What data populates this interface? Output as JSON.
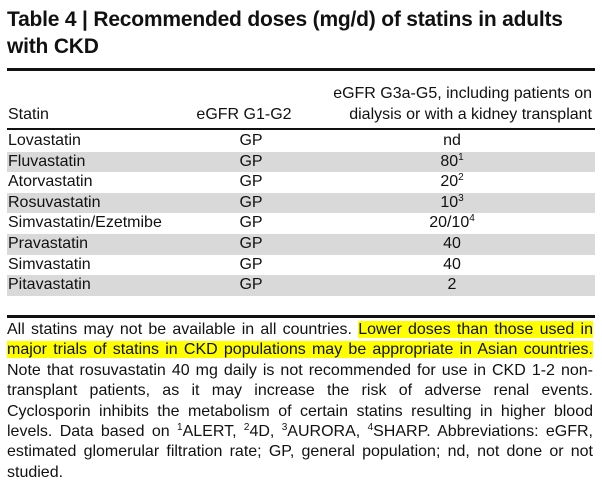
{
  "title": "Table 4 | Recommended doses (mg/d) of statins in adults with CKD",
  "columns": [
    "Statin",
    "eGFR G1-G2",
    "eGFR G3a-G5, including patients on",
    "dialysis or with a kidney transplant"
  ],
  "rows": [
    {
      "statin": "Lovastatin",
      "g1g2": "GP",
      "g3g5": "nd",
      "sup": ""
    },
    {
      "statin": "Fluvastatin",
      "g1g2": "GP",
      "g3g5": "80",
      "sup": "1"
    },
    {
      "statin": "Atorvastatin",
      "g1g2": "GP",
      "g3g5": "20",
      "sup": "2"
    },
    {
      "statin": "Rosuvastatin",
      "g1g2": "GP",
      "g3g5": "10",
      "sup": "3"
    },
    {
      "statin": "Simvastatin/Ezetmibe",
      "g1g2": "GP",
      "g3g5": "20/10",
      "sup": "4"
    },
    {
      "statin": "Pravastatin",
      "g1g2": "GP",
      "g3g5": "40",
      "sup": ""
    },
    {
      "statin": "Simvastatin",
      "g1g2": "GP",
      "g3g5": "40",
      "sup": ""
    },
    {
      "statin": "Pitavastatin",
      "g1g2": "GP",
      "g3g5": "2",
      "sup": ""
    }
  ],
  "footnote": {
    "part1": "All statins may not be available in all countries. ",
    "highlighted": "Lower doses than those used in major trials of statins in CKD populations may be appropriate in Asian countries.",
    "part2": " Note that rosuvastatin 40 mg daily is not recommended for use in CKD 1-2 non-transplant patients, as it may increase the risk of adverse renal events. Cyclosporin inhibits the metabolism of certain statins resulting in higher blood levels. Data based on ",
    "refs": [
      {
        "sup": "1",
        "text": "ALERT, "
      },
      {
        "sup": "2",
        "text": "4D, "
      },
      {
        "sup": "3",
        "text": "AURORA, "
      },
      {
        "sup": "4",
        "text": "SHARP."
      }
    ],
    "part3": " Abbreviations: eGFR, estimated glomerular filtration rate; GP, general population; nd, not done or not studied."
  },
  "colors": {
    "highlight": "#ffff00",
    "row_shade": "#d9d9d9"
  }
}
